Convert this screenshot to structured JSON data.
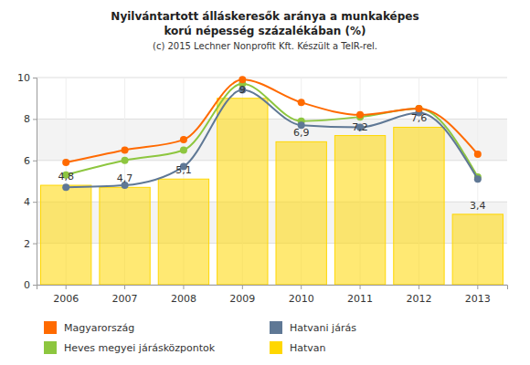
{
  "chart_data": {
    "type": "bar",
    "title": "Nyilvántartott álláskeresők aránya a munkaképes korú népesség százalékában (%)",
    "subtitle": "(c) 2015 Lechner Nonprofit Kft. Készült a TeIR-rel.",
    "categories": [
      "2006",
      "2007",
      "2008",
      "2009",
      "2010",
      "2011",
      "2012",
      "2013"
    ],
    "series": [
      {
        "name": "Magyarország",
        "type": "line",
        "color": "#ff6a00",
        "marker": "circle",
        "line_style": "solid",
        "values": [
          5.9,
          6.5,
          7.0,
          9.9,
          8.8,
          8.2,
          8.5,
          6.3
        ]
      },
      {
        "name": "Hatvani járás",
        "type": "line",
        "color": "#5f7895",
        "marker": "circle",
        "line_style": "solid",
        "values": [
          4.7,
          4.8,
          5.7,
          9.4,
          7.7,
          7.6,
          8.3,
          5.1
        ]
      },
      {
        "name": "Heves megyei járásközpontok",
        "type": "line",
        "color": "#8dc63f",
        "marker": "circle",
        "line_style": "solid",
        "values": [
          5.3,
          6.0,
          6.5,
          9.7,
          7.9,
          8.1,
          8.5,
          5.2
        ]
      },
      {
        "name": "Hatvan",
        "type": "bar",
        "color": "#ffd700",
        "data_labels": true,
        "values": [
          4.8,
          4.7,
          5.1,
          9,
          6.9,
          7.2,
          7.6,
          3.4
        ],
        "value_labels": [
          "4,8",
          "4,7",
          "5,1",
          "9",
          "6,9",
          "7,2",
          "7,6",
          "3,4"
        ]
      }
    ],
    "ylim": [
      0,
      10
    ],
    "yticks": [
      0,
      2,
      4,
      6,
      8,
      10
    ],
    "grid": true,
    "legend": "bottom"
  }
}
